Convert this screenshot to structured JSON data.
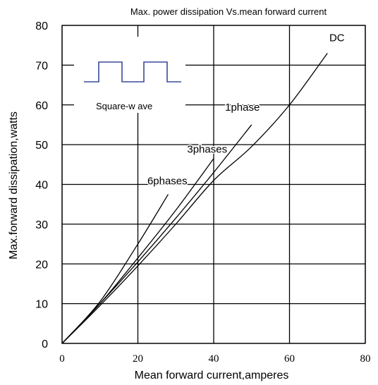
{
  "chart_data": {
    "type": "line",
    "title": "Max. power dissipation  Vs.mean  forward  current",
    "xlabel": "Mean  forward  current,amperes",
    "ylabel": "Max.forward  dissipation,watts",
    "xlim": [
      0,
      80
    ],
    "ylim": [
      0,
      80
    ],
    "x_ticks": [
      "0",
      "20",
      "40",
      "60",
      "80"
    ],
    "y_ticks": [
      "0",
      "10",
      "20",
      "30",
      "40",
      "50",
      "60",
      "70",
      "80"
    ],
    "grid": true,
    "inset_label": "Square-w ave",
    "series": [
      {
        "name": "DC",
        "points": [
          [
            0,
            0
          ],
          [
            10,
            9.5
          ],
          [
            20,
            19.5
          ],
          [
            30,
            30
          ],
          [
            40,
            41
          ],
          [
            50,
            49.5
          ],
          [
            60,
            60
          ],
          [
            70,
            73
          ]
        ]
      },
      {
        "name": "1phase",
        "points": [
          [
            0,
            0
          ],
          [
            10,
            10
          ],
          [
            20,
            20.5
          ],
          [
            30,
            31.5
          ],
          [
            40,
            43
          ],
          [
            50,
            55
          ]
        ]
      },
      {
        "name": "3phases",
        "points": [
          [
            0,
            0
          ],
          [
            10,
            10
          ],
          [
            20,
            21.5
          ],
          [
            30,
            33.5
          ],
          [
            40,
            46.5
          ]
        ]
      },
      {
        "name": "6phases",
        "points": [
          [
            0,
            0
          ],
          [
            10,
            10.5
          ],
          [
            20,
            25
          ],
          [
            28,
            37.5
          ]
        ]
      }
    ],
    "series_label_positions": [
      {
        "name": "DC",
        "x": 70.5,
        "y": 76
      },
      {
        "name": "1phase",
        "x": 43,
        "y": 58.5
      },
      {
        "name": "3phases",
        "x": 33,
        "y": 48
      },
      {
        "name": "6phases",
        "x": 22.5,
        "y": 40
      }
    ]
  }
}
